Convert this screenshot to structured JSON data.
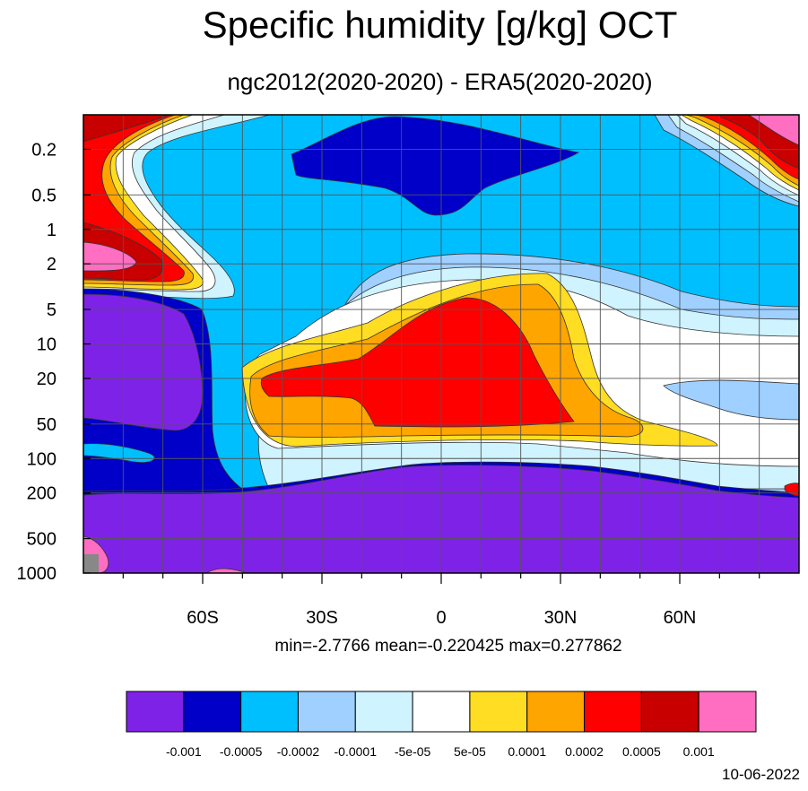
{
  "chart_data": {
    "type": "heatmap",
    "title": "Specific humidity [g/kg] OCT",
    "subtitle": "ngc2012(2020-2020) - ERA5(2020-2020)",
    "x_axis": {
      "ticks": [
        "60S",
        "30S",
        "0",
        "30N",
        "60N"
      ],
      "tick_values": [
        -60,
        -30,
        0,
        30,
        60
      ],
      "range": [
        -90,
        90
      ]
    },
    "y_axis": {
      "ticks": [
        "0.2",
        "0.5",
        "1",
        "2",
        "5",
        "10",
        "20",
        "50",
        "100",
        "200",
        "500",
        "1000"
      ],
      "tick_values": [
        0.2,
        0.5,
        1,
        2,
        5,
        10,
        20,
        50,
        100,
        200,
        500,
        1000
      ],
      "scale": "log",
      "inverted": true
    },
    "grid": true,
    "stats": {
      "text": "min=-2.7766   mean=-0.220425   max=0.277862",
      "min": -2.7766,
      "mean": -0.220425,
      "max": 0.277862
    },
    "colorbar": {
      "labels": [
        "-0.001",
        "-0.0005",
        "-0.0002",
        "-0.0001",
        "-5e-05",
        "5e-05",
        "0.0001",
        "0.0002",
        "0.0005",
        "0.001"
      ],
      "colors": [
        "#7f22e8",
        "#0000c8",
        "#00bfff",
        "#9fd0ff",
        "#cff3ff",
        "#ffffff",
        "#ffdd22",
        "#ffa500",
        "#ff0000",
        "#c80000",
        "#ff6ec0"
      ]
    },
    "date": "10-06-2022"
  }
}
